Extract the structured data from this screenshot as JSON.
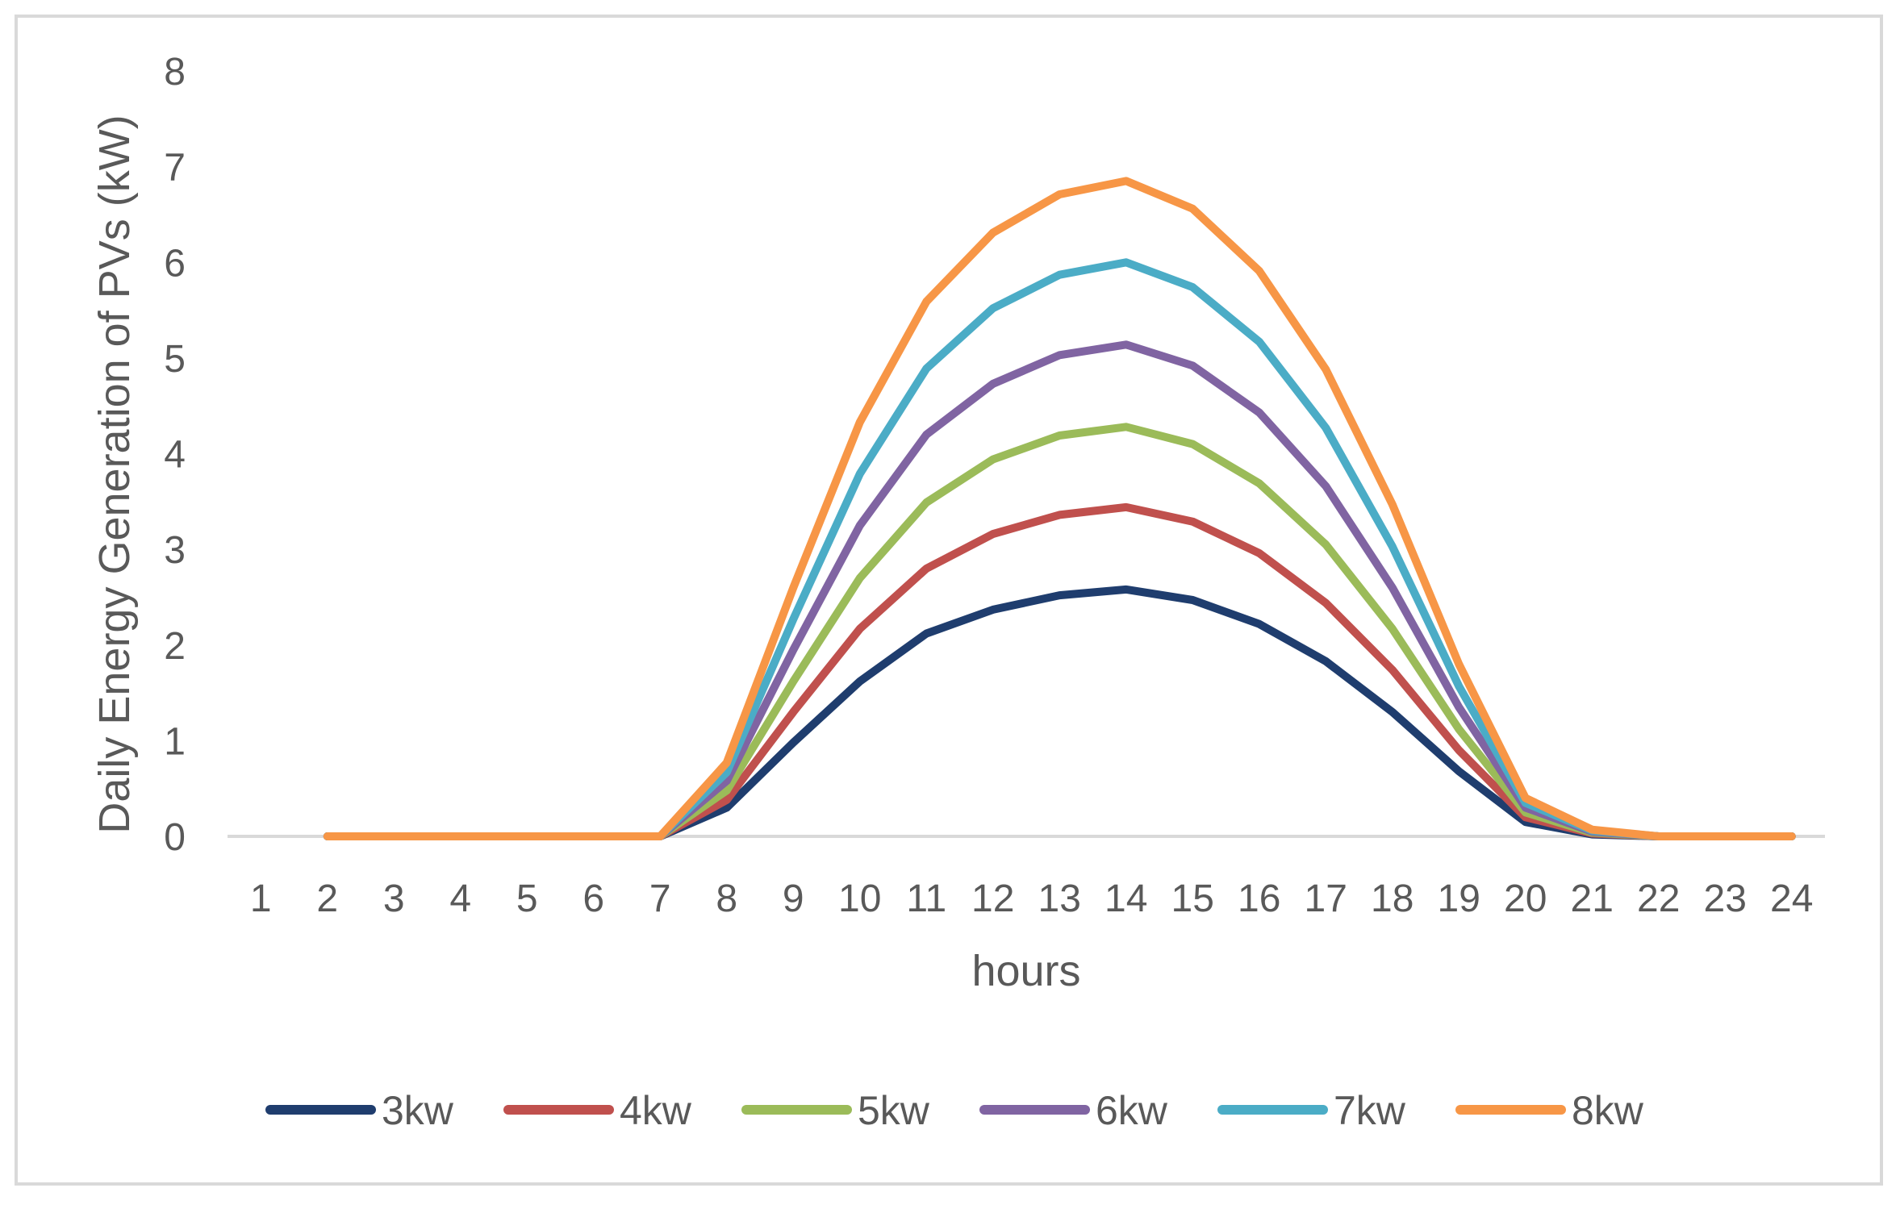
{
  "chart_data": {
    "type": "line",
    "title": "",
    "xlabel": "hours",
    "ylabel": "Daily Energy Generation of PVs (kW)",
    "ylim": [
      0,
      8
    ],
    "yticks": [
      0,
      1,
      2,
      3,
      4,
      5,
      6,
      7,
      8
    ],
    "categories": [
      "1",
      "2",
      "3",
      "4",
      "5",
      "6",
      "7",
      "8",
      "9",
      "10",
      "11",
      "12",
      "13",
      "14",
      "15",
      "16",
      "17",
      "18",
      "19",
      "20",
      "21",
      "22",
      "23",
      "24"
    ],
    "grid": false,
    "legend_position": "bottom",
    "series": [
      {
        "name": "3kw",
        "color": "#1f3d6e",
        "values": [
          null,
          0,
          0,
          0,
          0,
          0,
          0,
          0.3,
          0.98,
          1.62,
          2.12,
          2.37,
          2.52,
          2.58,
          2.47,
          2.22,
          1.83,
          1.3,
          0.68,
          0.15,
          0.02,
          0,
          0,
          0
        ]
      },
      {
        "name": "4kw",
        "color": "#c0504d",
        "values": [
          null,
          0,
          0,
          0,
          0,
          0,
          0,
          0.38,
          1.3,
          2.17,
          2.8,
          3.16,
          3.36,
          3.44,
          3.29,
          2.96,
          2.44,
          1.74,
          0.9,
          0.2,
          0.03,
          0,
          0,
          0
        ]
      },
      {
        "name": "5kw",
        "color": "#9bbb59",
        "values": [
          null,
          0,
          0,
          0,
          0,
          0,
          0,
          0.48,
          1.62,
          2.7,
          3.49,
          3.94,
          4.19,
          4.28,
          4.1,
          3.69,
          3.05,
          2.17,
          1.12,
          0.25,
          0.04,
          0,
          0,
          0
        ]
      },
      {
        "name": "6kw",
        "color": "#8064a2",
        "values": [
          null,
          0,
          0,
          0,
          0,
          0,
          0,
          0.58,
          1.95,
          3.25,
          4.2,
          4.73,
          5.03,
          5.14,
          4.92,
          4.43,
          3.66,
          2.6,
          1.35,
          0.3,
          0.05,
          0,
          0,
          0
        ]
      },
      {
        "name": "7kw",
        "color": "#4bacc6",
        "values": [
          null,
          0,
          0,
          0,
          0,
          0,
          0,
          0.67,
          2.27,
          3.79,
          4.89,
          5.52,
          5.87,
          6.0,
          5.74,
          5.17,
          4.27,
          3.03,
          1.57,
          0.35,
          0.06,
          0,
          0,
          0
        ]
      },
      {
        "name": "8kw",
        "color": "#f79646",
        "values": [
          null,
          0,
          0,
          0,
          0,
          0,
          0,
          0.77,
          2.6,
          4.33,
          5.59,
          6.31,
          6.71,
          6.85,
          6.56,
          5.91,
          4.88,
          3.47,
          1.8,
          0.4,
          0.07,
          0,
          0,
          0
        ]
      }
    ]
  }
}
